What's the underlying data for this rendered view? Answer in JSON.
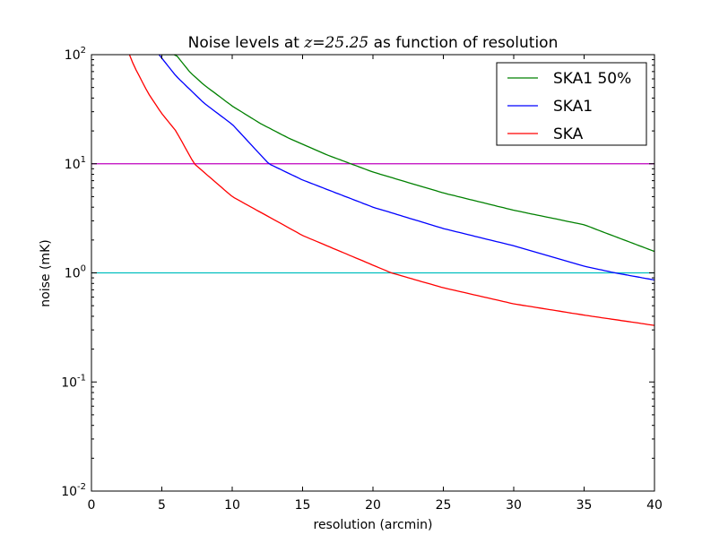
{
  "chart_data": {
    "type": "line",
    "title_prefix": "Noise levels at ",
    "title_math": "z=25.25",
    "title_suffix": " as function of resolution",
    "xlabel": "resolution (arcmin)",
    "ylabel": "noise (mK)",
    "xlim": [
      0,
      40
    ],
    "ylim": [
      0.01,
      100
    ],
    "yscale": "log",
    "grid": false,
    "legend_position": "top-right",
    "x_ticks": [
      0,
      5,
      10,
      15,
      20,
      25,
      30,
      35,
      40
    ],
    "x_tick_labels": [
      "0",
      "5",
      "10",
      "15",
      "20",
      "25",
      "30",
      "35",
      "40"
    ],
    "y_ticks": [
      {
        "value": 100,
        "base": "10",
        "exp": "2"
      },
      {
        "value": 10,
        "base": "10",
        "exp": "1"
      },
      {
        "value": 1,
        "base": "10",
        "exp": "0"
      },
      {
        "value": 0.1,
        "base": "10",
        "exp": "-1"
      },
      {
        "value": 0.01,
        "base": "10",
        "exp": "-2"
      }
    ],
    "series": [
      {
        "name": "SKA1 50%",
        "color": "#008000",
        "x": [
          5,
          6,
          7,
          8,
          10,
          12,
          14,
          16.7,
          20,
          25,
          30,
          35,
          40
        ],
        "y": [
          100,
          100,
          69.0,
          52.8,
          33.8,
          23.4,
          17.2,
          12.1,
          8.4,
          5.4,
          3.75,
          2.76,
          1.57
        ]
      },
      {
        "name": "SKA1",
        "color": "#0000ff",
        "x": [
          4.8,
          6,
          8,
          10,
          12.6,
          15,
          20,
          25,
          30,
          35,
          37.2,
          40
        ],
        "y": [
          100,
          63.9,
          35.9,
          23.0,
          10.0,
          7.1,
          4.0,
          2.55,
          1.77,
          1.15,
          1.0,
          0.86
        ]
      },
      {
        "name": "SKA",
        "color": "#ff0000",
        "x": [
          2.7,
          3,
          4,
          5,
          6,
          7.3,
          10,
          15,
          21.3,
          25,
          30,
          35,
          40
        ],
        "y": [
          100,
          80.0,
          45.0,
          28.8,
          20.0,
          10.0,
          5.0,
          2.2,
          1.0,
          0.73,
          0.52,
          0.41,
          0.33
        ]
      }
    ],
    "hlines": [
      {
        "y": 10,
        "color": "#bf00bf"
      },
      {
        "y": 1,
        "color": "#00bfbf"
      }
    ]
  }
}
